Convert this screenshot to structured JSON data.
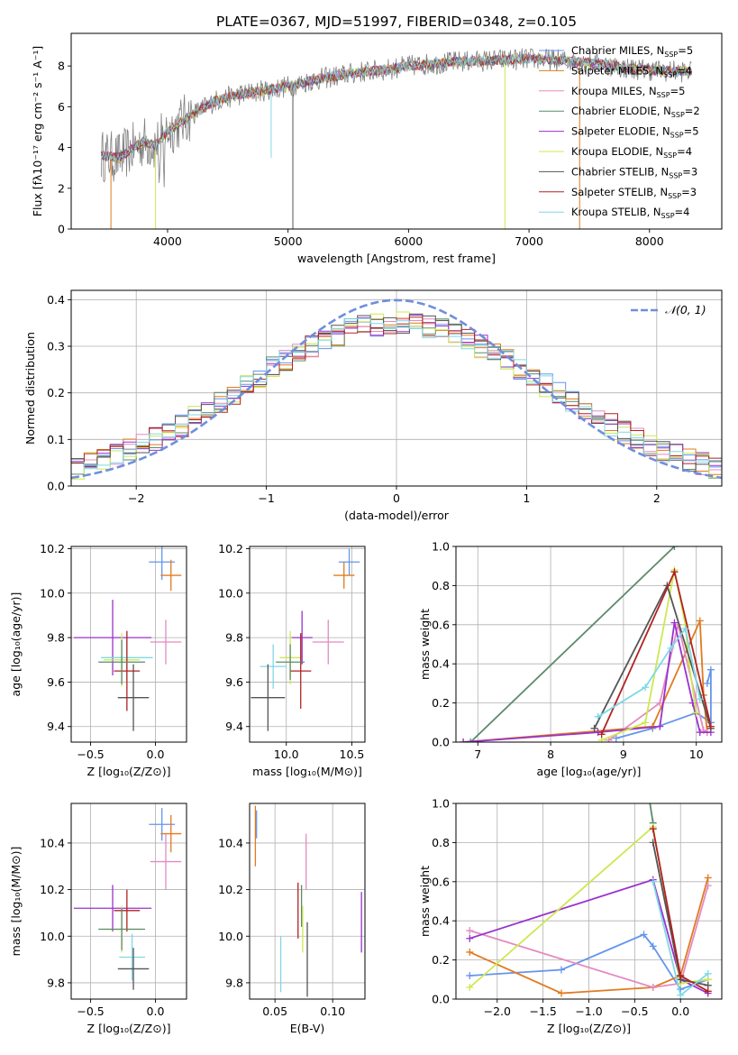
{
  "figure": {
    "title": "PLATE=0367, MJD=51997, FIBERID=0348, z=0.105",
    "colors": {
      "Chabrier MILES": "#6495ed",
      "Salpeter MILES": "#e07b1e",
      "Kroupa MILES": "#e38bc0",
      "Chabrier ELODIE": "#5d8a6a",
      "Salpeter ELODIE": "#9932cc",
      "Kroupa ELODIE": "#cde850",
      "Chabrier STELIB": "#555555",
      "Salpeter STELIB": "#b22222",
      "Kroupa STELIB": "#7fd8e6"
    }
  },
  "chart_data": [
    {
      "type": "line",
      "title": "PLATE=0367, MJD=51997, FIBERID=0348, z=0.105",
      "xlabel": "wavelength [Angstrom, rest frame]",
      "ylabel": "Flux [fλ10⁻¹⁷ erg cm⁻² s⁻¹ A⁻¹]",
      "xlim": [
        3200,
        8600
      ],
      "ylim": [
        0,
        9.6
      ],
      "xticks": [
        4000,
        5000,
        6000,
        7000,
        8000
      ],
      "yticks": [
        0,
        2,
        4,
        6,
        8
      ],
      "grid": false,
      "legend": "right",
      "legend_entries": [
        {
          "label": "Chabrier MILES, N",
          "sub": "SSP",
          "tail": "=5"
        },
        {
          "label": "Salpeter MILES, N",
          "sub": "SSP",
          "tail": "=4"
        },
        {
          "label": "Kroupa MILES, N",
          "sub": "SSP",
          "tail": "=5"
        },
        {
          "label": "Chabrier ELODIE, N",
          "sub": "SSP",
          "tail": "=2"
        },
        {
          "label": "Salpeter ELODIE, N",
          "sub": "SSP",
          "tail": "=5"
        },
        {
          "label": "Kroupa ELODIE, N",
          "sub": "SSP",
          "tail": "=4"
        },
        {
          "label": "Chabrier STELIB, N",
          "sub": "SSP",
          "tail": "=3"
        },
        {
          "label": "Salpeter STELIB, N",
          "sub": "SSP",
          "tail": "=3"
        },
        {
          "label": "Kroupa STELIB, N",
          "sub": "SSP",
          "tail": "=4"
        }
      ],
      "continuum": {
        "x": [
          3450,
          3600,
          3700,
          3800,
          3900,
          4000,
          4200,
          4400,
          4600,
          4800,
          5000,
          5200,
          5400,
          5600,
          5800,
          6000,
          6200,
          6400,
          6600,
          6800,
          7000,
          7200,
          7400,
          7600,
          7800,
          8000,
          8200,
          8350
        ],
        "y": [
          3.6,
          3.5,
          3.9,
          4.3,
          4.1,
          4.8,
          5.6,
          6.3,
          6.6,
          6.8,
          7.0,
          7.3,
          7.5,
          7.7,
          7.8,
          8.0,
          8.1,
          8.2,
          8.25,
          8.3,
          8.35,
          8.3,
          8.2,
          8.1,
          7.9,
          7.8,
          7.75,
          7.7
        ]
      },
      "series": [
        "Chabrier MILES",
        "Salpeter MILES",
        "Kroupa MILES",
        "Chabrier ELODIE",
        "Salpeter ELODIE",
        "Kroupa ELODIE",
        "Chabrier STELIB",
        "Salpeter STELIB",
        "Kroupa STELIB"
      ]
    },
    {
      "type": "line",
      "xlabel": "(data-model)/error",
      "ylabel": "Normed distribution",
      "xlim": [
        -2.5,
        2.5
      ],
      "ylim": [
        0,
        0.42
      ],
      "xticks": [
        -2,
        -1,
        0,
        1,
        2
      ],
      "xticklabels": [
        "−2",
        "−1",
        "0",
        "1",
        "2"
      ],
      "yticks": [
        0,
        0.1,
        0.2,
        0.3,
        0.4
      ],
      "yticklabels": [
        "0.0",
        "0.1",
        "0.2",
        "0.3",
        "0.4"
      ],
      "grid": true,
      "legend": "top-right",
      "legend_label": "𝒩(0, 1)",
      "bin_width": 0.1,
      "series": [
        "Chabrier MILES",
        "Salpeter MILES",
        "Kroupa MILES",
        "Chabrier ELODIE",
        "Salpeter ELODIE",
        "Kroupa ELODIE",
        "Chabrier STELIB",
        "Salpeter STELIB",
        "Kroupa STELIB"
      ]
    },
    {
      "type": "scatter",
      "xlabel": "Z [log₁₀(Z/Z⊙)]",
      "ylabel": "age  [log₁₀(age/yr)]",
      "xlim": [
        -0.65,
        0.24
      ],
      "ylim": [
        9.33,
        10.21
      ],
      "xticks": [
        -0.5,
        0.0
      ],
      "xticklabels": [
        "−0.5",
        "0.0"
      ],
      "yticks": [
        9.4,
        9.6,
        9.8,
        10.0,
        10.2
      ],
      "yticklabels": [
        "9.4",
        "9.6",
        "9.8",
        "10.0",
        "10.2"
      ],
      "grid": true,
      "points": [
        {
          "series": "Chabrier MILES",
          "x": 0.05,
          "y": 10.14,
          "xerr": 0.1,
          "yerr": 0.08
        },
        {
          "series": "Salpeter MILES",
          "x": 0.12,
          "y": 10.08,
          "xerr": 0.08,
          "yerr": 0.07
        },
        {
          "series": "Kroupa MILES",
          "x": 0.08,
          "y": 9.78,
          "xerr": 0.12,
          "yerr": 0.1
        },
        {
          "series": "Salpeter ELODIE",
          "x": -0.33,
          "y": 9.8,
          "xerr": 0.3,
          "yerr": 0.17
        },
        {
          "series": "Kroupa ELODIE",
          "x": -0.26,
          "y": 9.7,
          "xerr": 0.14,
          "yerr": 0.12
        },
        {
          "series": "Kroupa STELIB",
          "x": -0.22,
          "y": 9.71,
          "xerr": 0.2,
          "yerr": 0.1
        },
        {
          "series": "Chabrier STELIB",
          "x": -0.17,
          "y": 9.53,
          "xerr": 0.12,
          "yerr": 0.15
        },
        {
          "series": "Salpeter STELIB",
          "x": -0.22,
          "y": 9.65,
          "xerr": 0.1,
          "yerr": 0.18
        },
        {
          "series": "Chabrier ELODIE",
          "x": -0.26,
          "y": 9.69,
          "xerr": 0.18,
          "yerr": 0.1
        }
      ]
    },
    {
      "type": "scatter",
      "xlabel": "mass [log₁₀(M/M⊙)]",
      "xlim": [
        9.72,
        10.6
      ],
      "ylim": [
        9.33,
        10.21
      ],
      "xticks": [
        10.0,
        10.5
      ],
      "xticklabels": [
        "10.0",
        "10.5"
      ],
      "yticks": [
        9.4,
        9.6,
        9.8,
        10.0,
        10.2
      ],
      "yticklabels": [
        "9.4",
        "9.6",
        "9.8",
        "10.0",
        "10.2"
      ],
      "grid": true,
      "points": [
        {
          "series": "Chabrier MILES",
          "x": 10.48,
          "y": 10.14,
          "xerr": 0.08,
          "yerr": 0.06
        },
        {
          "series": "Salpeter MILES",
          "x": 10.44,
          "y": 10.08,
          "xerr": 0.08,
          "yerr": 0.06
        },
        {
          "series": "Kroupa MILES",
          "x": 10.32,
          "y": 9.78,
          "xerr": 0.12,
          "yerr": 0.1
        },
        {
          "series": "Salpeter ELODIE",
          "x": 10.12,
          "y": 9.8,
          "xerr": 0.08,
          "yerr": 0.12
        },
        {
          "series": "Kroupa ELODIE",
          "x": 10.03,
          "y": 9.71,
          "xerr": 0.08,
          "yerr": 0.12
        },
        {
          "series": "Kroupa STELIB",
          "x": 9.9,
          "y": 9.67,
          "xerr": 0.1,
          "yerr": 0.1
        },
        {
          "series": "Chabrier STELIB",
          "x": 9.86,
          "y": 9.53,
          "xerr": 0.13,
          "yerr": 0.15
        },
        {
          "series": "Salpeter STELIB",
          "x": 10.11,
          "y": 9.65,
          "xerr": 0.08,
          "yerr": 0.17
        },
        {
          "series": "Chabrier ELODIE",
          "x": 10.03,
          "y": 9.69,
          "xerr": 0.11,
          "yerr": 0.08
        }
      ]
    },
    {
      "type": "line",
      "xlabel": "age  [log₁₀(age/yr)]",
      "ylabel": "mass weight",
      "xlim": [
        6.7,
        10.35
      ],
      "ylim": [
        0,
        1.0
      ],
      "xticks": [
        7,
        8,
        9,
        10
      ],
      "yticks": [
        0,
        0.2,
        0.4,
        0.6,
        0.8,
        1.0
      ],
      "yticklabels": [
        "0.0",
        "0.2",
        "0.4",
        "0.6",
        "0.8",
        "1.0"
      ],
      "grid": true,
      "series": [
        {
          "name": "Chabrier ELODIE",
          "x": [
            6.9,
            9.7
          ],
          "y": [
            0.0,
            1.0
          ]
        },
        {
          "name": "Chabrier MILES",
          "x": [
            8.9,
            9.4,
            10.0,
            10.2,
            10.2,
            10.15
          ],
          "y": [
            0.02,
            0.07,
            0.15,
            0.1,
            0.37,
            0.3
          ]
        },
        {
          "name": "Salpeter MILES",
          "x": [
            6.8,
            9.4,
            10.05,
            10.1,
            10.15
          ],
          "y": [
            0.0,
            0.08,
            0.62,
            0.24,
            0.05
          ]
        },
        {
          "name": "Kroupa MILES",
          "x": [
            8.8,
            9.5,
            9.75,
            10.1,
            10.15
          ],
          "y": [
            0.01,
            0.2,
            0.6,
            0.06,
            0.05
          ]
        },
        {
          "name": "Salpeter ELODIE",
          "x": [
            6.8,
            8.65,
            9.5,
            9.7,
            9.95,
            10.05,
            10.2
          ],
          "y": [
            0.0,
            0.05,
            0.08,
            0.61,
            0.2,
            0.05,
            0.05
          ]
        },
        {
          "name": "Kroupa ELODIE",
          "x": [
            8.7,
            9.3,
            9.7,
            9.85,
            9.9,
            10.0
          ],
          "y": [
            0.01,
            0.1,
            0.88,
            0.6,
            0.4,
            0.15
          ]
        },
        {
          "name": "Chabrier STELIB",
          "x": [
            8.6,
            9.6,
            10.2
          ],
          "y": [
            0.07,
            0.8,
            0.07
          ]
        },
        {
          "name": "Salpeter STELIB",
          "x": [
            8.7,
            9.7,
            10.2
          ],
          "y": [
            0.04,
            0.87,
            0.08
          ]
        },
        {
          "name": "Kroupa STELIB",
          "x": [
            8.65,
            9.3,
            9.65,
            9.85,
            10.05
          ],
          "y": [
            0.13,
            0.28,
            0.48,
            0.58,
            0.22
          ]
        }
      ]
    },
    {
      "type": "scatter",
      "xlabel": "Z [log₁₀(Z/Z⊙)]",
      "ylabel": "mass [log₁₀(M/M⊙)]",
      "xlim": [
        -0.65,
        0.24
      ],
      "ylim": [
        9.73,
        10.57
      ],
      "xticks": [
        -0.5,
        0.0
      ],
      "xticklabels": [
        "−0.5",
        "0.0"
      ],
      "yticks": [
        9.8,
        10.0,
        10.2,
        10.4
      ],
      "yticklabels": [
        "9.8",
        "10.0",
        "10.2",
        "10.4"
      ],
      "grid": true,
      "points": [
        {
          "series": "Chabrier MILES",
          "x": 0.05,
          "y": 10.48,
          "xerr": 0.1,
          "yerr": 0.07
        },
        {
          "series": "Salpeter MILES",
          "x": 0.12,
          "y": 10.44,
          "xerr": 0.08,
          "yerr": 0.08
        },
        {
          "series": "Kroupa MILES",
          "x": 0.08,
          "y": 10.32,
          "xerr": 0.12,
          "yerr": 0.12
        },
        {
          "series": "Salpeter ELODIE",
          "x": -0.33,
          "y": 10.12,
          "xerr": 0.3,
          "yerr": 0.1
        },
        {
          "series": "Kroupa ELODIE",
          "x": -0.26,
          "y": 10.03,
          "xerr": 0.14,
          "yerr": 0.1
        },
        {
          "series": "Kroupa STELIB",
          "x": -0.18,
          "y": 9.91,
          "xerr": 0.1,
          "yerr": 0.1
        },
        {
          "series": "Chabrier STELIB",
          "x": -0.17,
          "y": 9.86,
          "xerr": 0.12,
          "yerr": 0.09
        },
        {
          "series": "Salpeter STELIB",
          "x": -0.22,
          "y": 10.11,
          "xerr": 0.1,
          "yerr": 0.09
        },
        {
          "series": "Chabrier ELODIE",
          "x": -0.26,
          "y": 10.03,
          "xerr": 0.18,
          "yerr": 0.09
        }
      ]
    },
    {
      "type": "scatter",
      "xlabel": "E(B-V)",
      "xlim": [
        0.028,
        0.128
      ],
      "ylim": [
        9.73,
        10.57
      ],
      "xticks": [
        0.05,
        0.1
      ],
      "xticklabels": [
        "0.05",
        "0.10"
      ],
      "yticks": [
        9.8,
        10.0,
        10.2,
        10.4
      ],
      "yticklabels": [
        "9.8",
        "10.0",
        "10.2",
        "10.4"
      ],
      "grid": true,
      "points": [
        {
          "series": "Chabrier MILES",
          "x": 0.034,
          "y": 10.48,
          "xerr": 0,
          "yerr": 0.06
        },
        {
          "series": "Salpeter MILES",
          "x": 0.033,
          "y": 10.43,
          "xerr": 0,
          "yerr": 0.13
        },
        {
          "series": "Kroupa MILES",
          "x": 0.077,
          "y": 10.32,
          "xerr": 0,
          "yerr": 0.12
        },
        {
          "series": "Salpeter ELODIE",
          "x": 0.125,
          "y": 10.06,
          "xerr": 0,
          "yerr": 0.13
        },
        {
          "series": "Kroupa ELODIE",
          "x": 0.074,
          "y": 10.03,
          "xerr": 0,
          "yerr": 0.1
        },
        {
          "series": "Kroupa STELIB",
          "x": 0.055,
          "y": 9.88,
          "xerr": 0,
          "yerr": 0.12
        },
        {
          "series": "Chabrier STELIB",
          "x": 0.078,
          "y": 9.9,
          "xerr": 0,
          "yerr": 0.16
        },
        {
          "series": "Salpeter STELIB",
          "x": 0.07,
          "y": 10.11,
          "xerr": 0,
          "yerr": 0.12
        },
        {
          "series": "Chabrier ELODIE",
          "x": 0.073,
          "y": 10.13,
          "xerr": 0,
          "yerr": 0.09
        }
      ]
    },
    {
      "type": "line",
      "xlabel": "Z [log₁₀(Z/Z⊙)]",
      "ylabel": "mass weight",
      "xlim": [
        -2.45,
        0.45
      ],
      "ylim": [
        0,
        1.0
      ],
      "xticks": [
        -2.0,
        -1.5,
        -1.0,
        -0.5,
        0.0
      ],
      "xticklabels": [
        "−2.0",
        "−1.5",
        "−1.0",
        "−0.5",
        "0.0"
      ],
      "yticks": [
        0,
        0.2,
        0.4,
        0.6,
        0.8,
        1.0
      ],
      "yticklabels": [
        "0.0",
        "0.2",
        "0.4",
        "0.6",
        "0.8",
        "1.0"
      ],
      "grid": true,
      "series": [
        {
          "name": "Chabrier ELODIE",
          "x": [
            -0.4,
            -0.3
          ],
          "y": [
            1.2,
            0.9
          ]
        },
        {
          "name": "Chabrier MILES",
          "x": [
            -2.3,
            -1.3,
            -0.4,
            -0.3,
            0.0,
            0.3
          ],
          "y": [
            0.12,
            0.15,
            0.33,
            0.27,
            0.05,
            0.1
          ]
        },
        {
          "name": "Salpeter MILES",
          "x": [
            -2.3,
            -1.3,
            -0.3,
            0.0,
            0.3
          ],
          "y": [
            0.24,
            0.03,
            0.06,
            0.12,
            0.62
          ]
        },
        {
          "name": "Kroupa MILES",
          "x": [
            -2.3,
            -0.3,
            0.0,
            0.3
          ],
          "y": [
            0.35,
            0.06,
            0.08,
            0.58
          ]
        },
        {
          "name": "Salpeter ELODIE",
          "x": [
            -2.3,
            -0.3,
            0.0,
            0.3
          ],
          "y": [
            0.31,
            0.61,
            0.1,
            0.03
          ]
        },
        {
          "name": "Kroupa ELODIE",
          "x": [
            -2.3,
            -0.3,
            0.0,
            0.3
          ],
          "y": [
            0.06,
            0.88,
            0.08,
            0.1
          ]
        },
        {
          "name": "Chabrier STELIB",
          "x": [
            -0.3,
            0.0,
            0.3
          ],
          "y": [
            0.8,
            0.1,
            0.07
          ]
        },
        {
          "name": "Salpeter STELIB",
          "x": [
            -0.3,
            0.0,
            0.3
          ],
          "y": [
            0.87,
            0.12,
            0.04
          ]
        },
        {
          "name": "Kroupa STELIB",
          "x": [
            -0.3,
            0.0,
            0.3
          ],
          "y": [
            0.6,
            0.02,
            0.13
          ]
        }
      ]
    }
  ]
}
